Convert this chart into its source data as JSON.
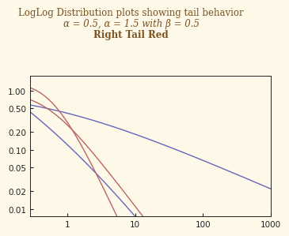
{
  "title_line1": "LogLog Distribution plots showing tail behavior",
  "title_line2": "α = 0.5, α = 1.5 with β = 0.5",
  "title_line3": "Right Tail Red",
  "alpha1": 0.5,
  "alpha2": 1.5,
  "beta": 0.5,
  "xstart": 0.28,
  "xend": 1000,
  "ylim_low": 0.0075,
  "ylim_high": 1.8,
  "color_blue": "#6666bb",
  "color_red": "#bb6666",
  "background_color": "#fdf8e8",
  "title_color": "#7a5222",
  "linewidth": 1.0,
  "yticks": [
    0.01,
    0.02,
    0.05,
    0.1,
    0.2,
    0.5,
    1.0
  ],
  "xticks": [
    1,
    10,
    100,
    1000
  ],
  "title1_fontsize": 8.5,
  "title2_fontsize": 8.5,
  "title3_fontsize": 8.5,
  "tick_fontsize": 7.5
}
